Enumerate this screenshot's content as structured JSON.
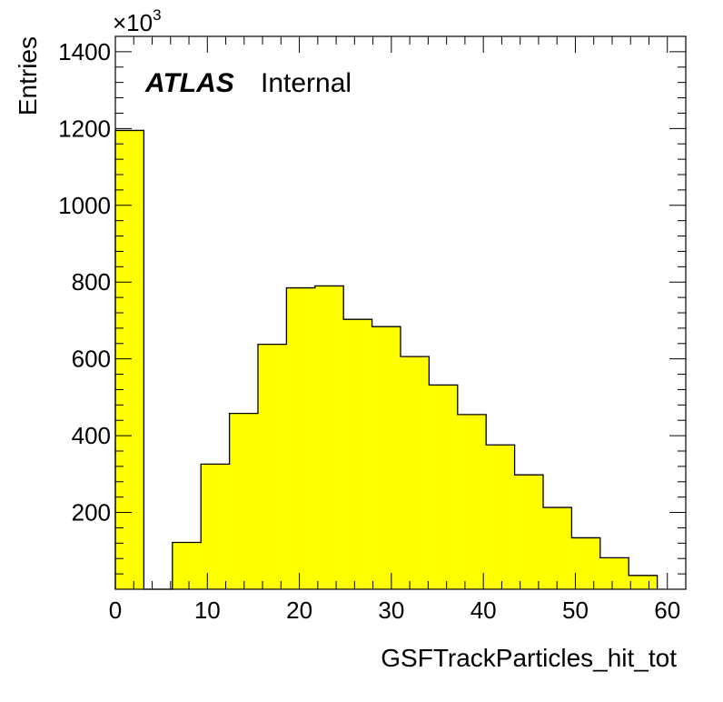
{
  "chart_data": {
    "type": "bar",
    "histogram": true,
    "xlabel": "GSFTrackParticles_hit_tot",
    "ylabel": "Entries",
    "y_multiplier_base": "×10",
    "y_multiplier_exp": "3",
    "label_main": "ATLAS",
    "label_sub": "Internal",
    "xlim": [
      0,
      62
    ],
    "ylim": [
      0,
      1440
    ],
    "x_ticks": [
      0,
      10,
      20,
      30,
      40,
      50,
      60
    ],
    "x_tick_labels": [
      "0",
      "10",
      "20",
      "30",
      "40",
      "50",
      "60"
    ],
    "y_ticks": [
      200,
      400,
      600,
      800,
      1000,
      1200,
      1400
    ],
    "y_tick_labels": [
      "200",
      "400",
      "600",
      "800",
      "1000",
      "1200",
      "1400"
    ],
    "fill_color": "#ffff00",
    "line_color": "#000000",
    "bins": [
      {
        "x0": 0.0,
        "x1": 3.1,
        "value": 1195
      },
      {
        "x0": 3.1,
        "x1": 6.2,
        "value": 0
      },
      {
        "x0": 6.2,
        "x1": 9.3,
        "value": 122
      },
      {
        "x0": 9.3,
        "x1": 12.4,
        "value": 326
      },
      {
        "x0": 12.4,
        "x1": 15.5,
        "value": 458
      },
      {
        "x0": 15.5,
        "x1": 18.6,
        "value": 638
      },
      {
        "x0": 18.6,
        "x1": 21.7,
        "value": 785
      },
      {
        "x0": 21.7,
        "x1": 24.8,
        "value": 790
      },
      {
        "x0": 24.8,
        "x1": 27.9,
        "value": 703
      },
      {
        "x0": 27.9,
        "x1": 31.0,
        "value": 684
      },
      {
        "x0": 31.0,
        "x1": 34.1,
        "value": 606
      },
      {
        "x0": 34.1,
        "x1": 37.2,
        "value": 532
      },
      {
        "x0": 37.2,
        "x1": 40.3,
        "value": 455
      },
      {
        "x0": 40.3,
        "x1": 43.4,
        "value": 376
      },
      {
        "x0": 43.4,
        "x1": 46.5,
        "value": 298
      },
      {
        "x0": 46.5,
        "x1": 49.6,
        "value": 213
      },
      {
        "x0": 49.6,
        "x1": 52.7,
        "value": 134
      },
      {
        "x0": 52.7,
        "x1": 55.8,
        "value": 82
      },
      {
        "x0": 55.8,
        "x1": 58.9,
        "value": 36
      }
    ]
  }
}
